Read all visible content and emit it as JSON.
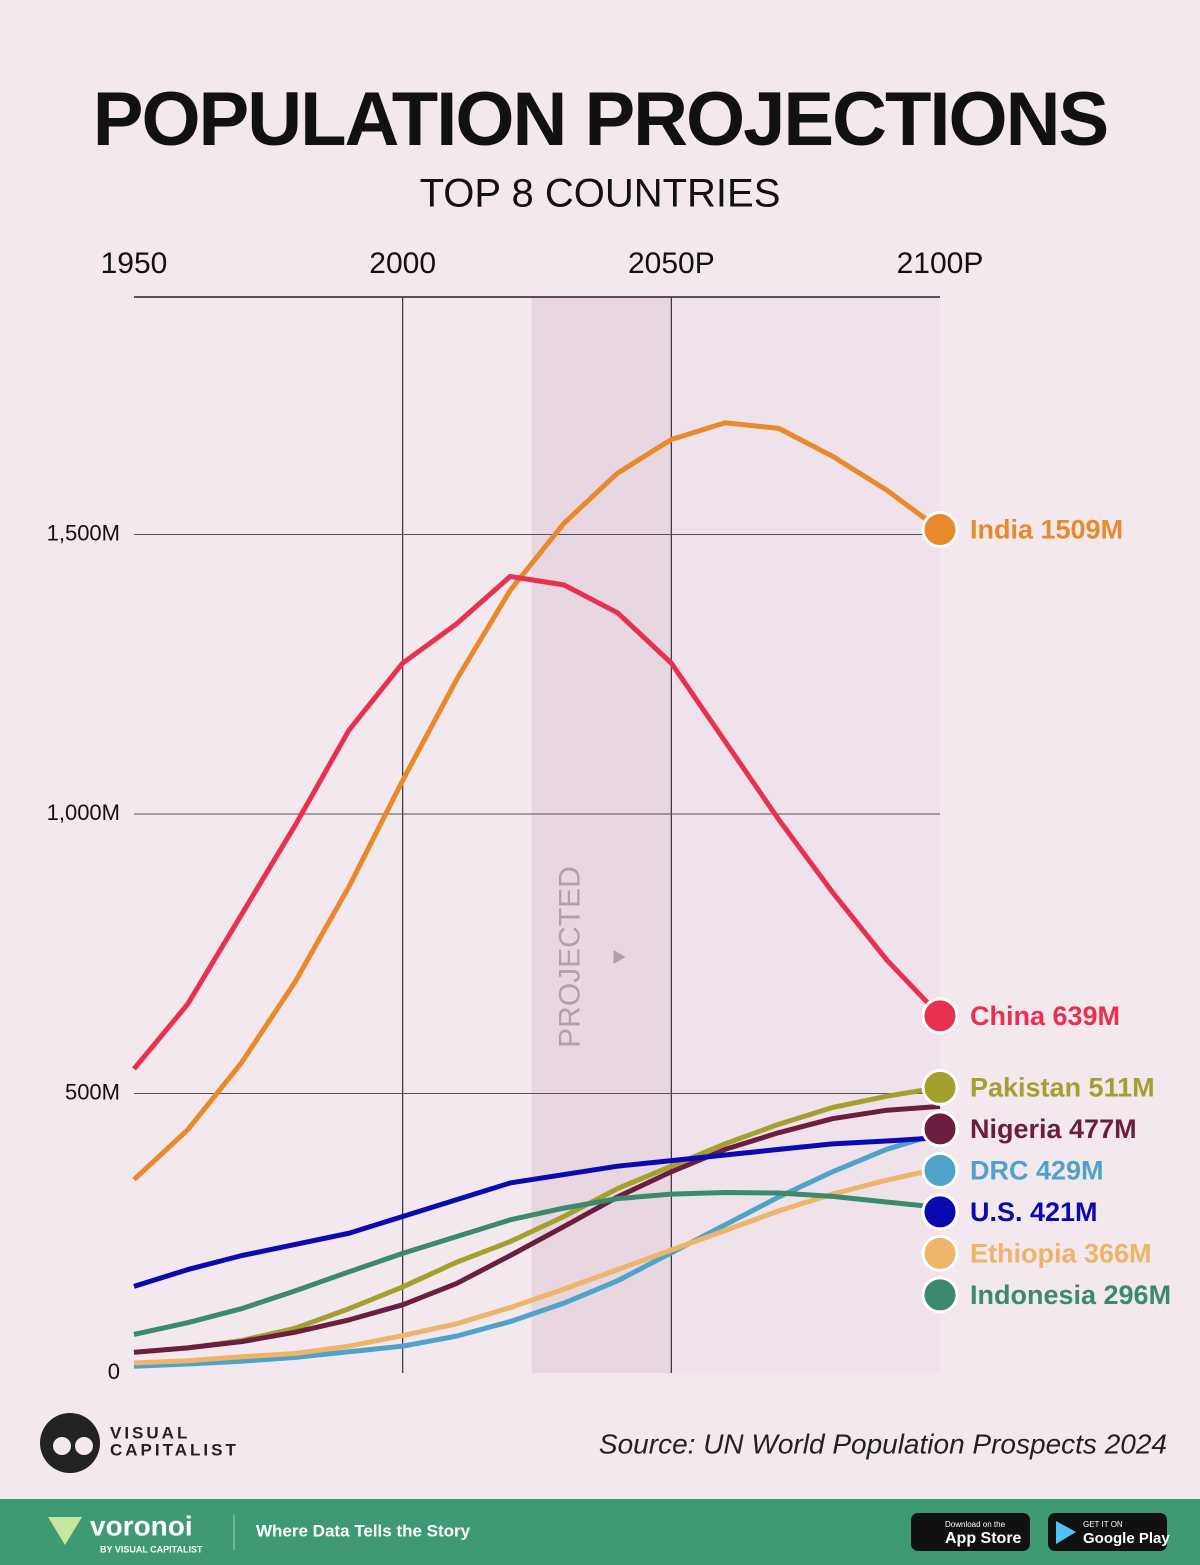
{
  "chart_data": {
    "type": "line",
    "title": "POPULATION PROJECTIONS",
    "subtitle": "TOP 8 COUNTRIES",
    "annotation": "PROJECTED",
    "projected_band": [
      2024,
      2050
    ],
    "x": [
      1950,
      1960,
      1970,
      1980,
      1990,
      2000,
      2010,
      2020,
      2030,
      2040,
      2050,
      2060,
      2070,
      2080,
      2090,
      2100
    ],
    "xlim": [
      1950,
      2100
    ],
    "xticks": [
      1950,
      2000,
      {
        "value": 2050,
        "label": "2050P"
      },
      {
        "value": 2100,
        "label": "2100P"
      }
    ],
    "ylim": [
      0,
      1925
    ],
    "yticks": [
      0,
      {
        "value": 500,
        "label": "500M"
      },
      {
        "value": 1000,
        "label": "1,000M"
      },
      {
        "value": 1500,
        "label": "1,500M"
      }
    ],
    "grid": true,
    "series": [
      {
        "name": "India",
        "label": "India 1509M",
        "color": "#e8892b",
        "values": [
          346,
          435,
          555,
          700,
          870,
          1060,
          1240,
          1400,
          1520,
          1610,
          1670,
          1700,
          1690,
          1640,
          1580,
          1509
        ]
      },
      {
        "name": "China",
        "label": "China 639M",
        "color": "#e8314f",
        "values": [
          544,
          660,
          820,
          980,
          1150,
          1270,
          1340,
          1425,
          1410,
          1360,
          1270,
          1130,
          990,
          860,
          740,
          639
        ]
      },
      {
        "name": "Pakistan",
        "label": "Pakistan 511M",
        "color": "#a3a030",
        "values": [
          37,
          45,
          58,
          80,
          115,
          154,
          198,
          235,
          280,
          330,
          370,
          410,
          445,
          475,
          495,
          511
        ]
      },
      {
        "name": "Nigeria",
        "label": "Nigeria 477M",
        "color": "#6b1e3f",
        "values": [
          37,
          45,
          56,
          73,
          95,
          122,
          160,
          210,
          262,
          315,
          360,
          400,
          430,
          455,
          470,
          477
        ]
      },
      {
        "name": "DRC",
        "label": "DRC 429M",
        "color": "#4fa3c9",
        "values": [
          12,
          16,
          21,
          28,
          38,
          48,
          66,
          92,
          125,
          165,
          215,
          265,
          315,
          360,
          400,
          429
        ]
      },
      {
        "name": "U.S.",
        "label": "U.S. 421M",
        "color": "#0a0ab0",
        "values": [
          155,
          185,
          210,
          230,
          250,
          280,
          310,
          340,
          355,
          370,
          380,
          390,
          400,
          410,
          415,
          421
        ]
      },
      {
        "name": "Ethiopia",
        "label": "Ethiopia 366M",
        "color": "#eeb46a",
        "values": [
          18,
          22,
          29,
          35,
          48,
          67,
          88,
          117,
          150,
          185,
          220,
          255,
          290,
          320,
          345,
          366
        ]
      },
      {
        "name": "Indonesia",
        "label": "Indonesia 296M",
        "color": "#3a8a6b",
        "values": [
          69,
          90,
          115,
          147,
          181,
          214,
          244,
          274,
          295,
          312,
          320,
          323,
          322,
          316,
          306,
          296
        ]
      }
    ]
  },
  "brand": {
    "name": "VISUAL",
    "name2": "CAPITALIST",
    "source": "Source: UN World Population Prospects 2024"
  },
  "footer": {
    "logo": "voronoi",
    "by": "BY VISUAL CAPITALIST",
    "tagline": "Where Data Tells the Story",
    "appstore_small": "Download on the",
    "appstore": "App Store",
    "google_small": "GET IT ON",
    "google": "Google Play"
  }
}
